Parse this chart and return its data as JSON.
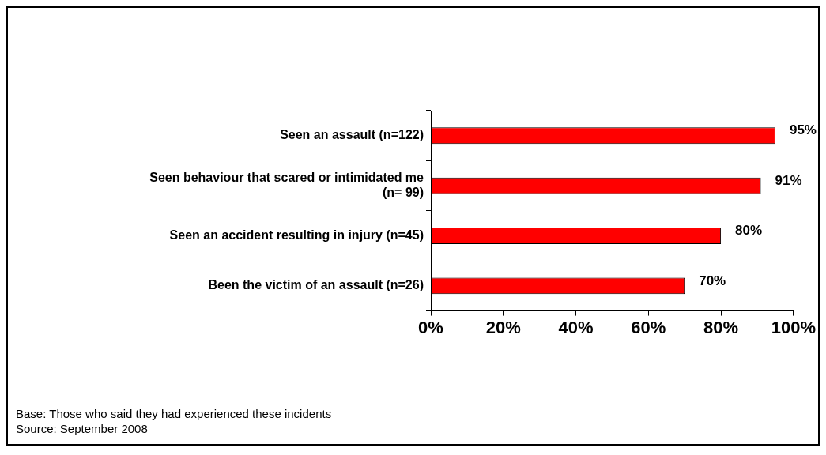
{
  "chart_data": {
    "type": "bar",
    "orientation": "horizontal",
    "categories": [
      "Seen an assault (n=122)",
      "Seen behaviour that scared or intimidated me (n= 99)",
      "Seen an accident resulting in injury (n=45)",
      "Been the victim of an assault (n=26)"
    ],
    "values": [
      95,
      91,
      80,
      70
    ],
    "color": "#ff0000",
    "value_labels": [
      "95%",
      "91%",
      "80%",
      "70%"
    ],
    "xlim": [
      0,
      100
    ],
    "xticks": [
      {
        "value": 0,
        "label": "0%"
      },
      {
        "value": 20,
        "label": "20%"
      },
      {
        "value": 40,
        "label": "40%"
      },
      {
        "value": 60,
        "label": "60%"
      },
      {
        "value": 80,
        "label": "80%"
      },
      {
        "value": 100,
        "label": "100%"
      }
    ],
    "grid": false,
    "legend": false,
    "annotations": [
      "Base: Those who said they had experienced these incidents",
      "Source: September 2008"
    ]
  }
}
